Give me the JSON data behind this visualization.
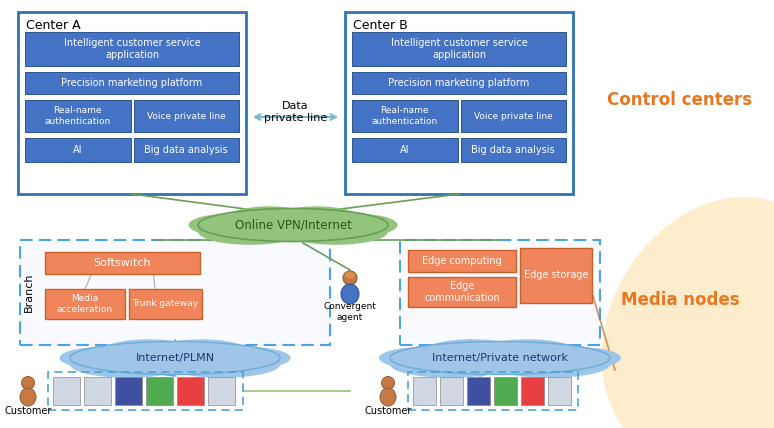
{
  "bg_color": "#ffffff",
  "orange_text_color": "#e87722",
  "outer_box_edge": "#2e74b5",
  "blue_btn_color": "#4472c4",
  "blue_btn_edge": "#2e5490",
  "orange_btn_color": "#f0845a",
  "orange_btn_edge": "#c8612a",
  "green_cloud_color": "#92c47d",
  "green_cloud_edge": "#6a9e58",
  "blue_cloud_color": "#9fc5e8",
  "blue_cloud_edge": "#6badd6",
  "dashed_blue": "#4ca3dd",
  "dashed_green": "#92c47d",
  "arrow_color": "#7ab8d4",
  "control_centers_label": "Control centers",
  "media_nodes_label": "Media nodes",
  "center_a_label": "Center A",
  "center_b_label": "Center B",
  "data_private_line": "Data\nprivate line",
  "vpn_label": "Online VPN/Internet",
  "softswitch_label": "Softswitch",
  "media_accel_label": "Media\nacceleration",
  "trunk_gw_label": "Trunk gateway",
  "convergent_label": "Convergent\nagent",
  "edge_computing_label": "Edge computing",
  "edge_storage_label": "Edge storage",
  "edge_comm_label": "Edge\ncommunication",
  "inet_plmn_label": "Internet/PLMN",
  "inet_private_label": "Internet/Private network",
  "customer_label": "Customer",
  "branch_label": "Branch",
  "icsa_label": "Intelligent customer service\napplication",
  "pmp_label": "Precision marketing platform",
  "rna_label": "Real-name\nauthentication",
  "vpl_label": "Voice private line",
  "ai_label": "AI",
  "bda_label": "Big data analysis",
  "figw": 7.74,
  "figh": 4.28,
  "dpi": 100
}
